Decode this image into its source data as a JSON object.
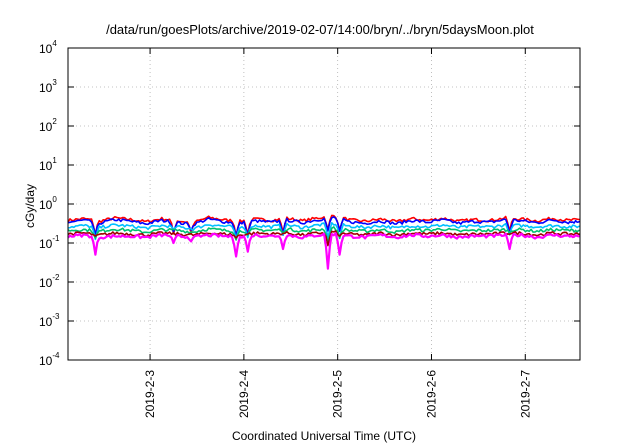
{
  "chart_data": {
    "type": "line",
    "title": "/data/run/goesPlots/archive/2019-02-07/14:00/bryn/../bryn/5daysMoon.plot",
    "xlabel": "Coordinated Universal Time (UTC)",
    "ylabel": "cGy/day",
    "yscale": "log",
    "ylim": [
      0.0001,
      10000
    ],
    "yticks": [
      {
        "base": "10",
        "exp": "-4",
        "value": 0.0001
      },
      {
        "base": "10",
        "exp": "-3",
        "value": 0.001
      },
      {
        "base": "10",
        "exp": "-2",
        "value": 0.01
      },
      {
        "base": "10",
        "exp": "-1",
        "value": 0.1
      },
      {
        "base": "10",
        "exp": "0",
        "value": 1
      },
      {
        "base": "10",
        "exp": "1",
        "value": 10
      },
      {
        "base": "10",
        "exp": "2",
        "value": 100
      },
      {
        "base": "10",
        "exp": "3",
        "value": 1000
      },
      {
        "base": "10",
        "exp": "4",
        "value": 10000
      }
    ],
    "xlim": [
      "2019-02-02T03:00",
      "2019-02-07T14:00"
    ],
    "xticks": [
      {
        "label": "2019-2-3",
        "date": "2019-02-03T00:00"
      },
      {
        "label": "2019-2-4",
        "date": "2019-02-04T00:00"
      },
      {
        "label": "2019-2-5",
        "date": "2019-02-05T00:00"
      },
      {
        "label": "2019-2-6",
        "date": "2019-02-06T00:00"
      },
      {
        "label": "2019-2-7",
        "date": "2019-02-07T00:00"
      }
    ],
    "grid": true,
    "x_dates": [
      "2019-02-02T03:00",
      "2019-02-02T07:00",
      "2019-02-02T11:00",
      "2019-02-02T15:00",
      "2019-02-02T19:00",
      "2019-02-02T23:00",
      "2019-02-03T03:00",
      "2019-02-03T07:00",
      "2019-02-03T11:00",
      "2019-02-03T15:00",
      "2019-02-03T19:00",
      "2019-02-03T23:00",
      "2019-02-04T03:00",
      "2019-02-04T07:00",
      "2019-02-04T11:00",
      "2019-02-04T15:00",
      "2019-02-04T19:00",
      "2019-02-04T23:00",
      "2019-02-05T03:00",
      "2019-02-05T07:00",
      "2019-02-05T11:00",
      "2019-02-05T15:00",
      "2019-02-05T19:00",
      "2019-02-05T23:00",
      "2019-02-06T03:00",
      "2019-02-06T07:00",
      "2019-02-06T11:00",
      "2019-02-06T15:00",
      "2019-02-06T19:00",
      "2019-02-06T23:00",
      "2019-02-07T03:00",
      "2019-02-07T07:00",
      "2019-02-07T11:00",
      "2019-02-07T14:00"
    ],
    "series": [
      {
        "color": "#ff0000",
        "values": [
          0.38,
          0.42,
          0.36,
          0.44,
          0.4,
          0.35,
          0.42,
          0.37,
          0.33,
          0.45,
          0.39,
          0.36,
          0.41,
          0.38,
          0.43,
          0.37,
          0.44,
          0.5,
          0.39,
          0.36,
          0.41,
          0.35,
          0.42,
          0.38,
          0.43,
          0.36,
          0.4,
          0.38,
          0.44,
          0.41,
          0.37,
          0.43,
          0.38,
          0.4
        ]
      },
      {
        "color": "#0000ff",
        "values": [
          0.34,
          0.38,
          0.32,
          0.4,
          0.36,
          0.31,
          0.38,
          0.33,
          0.3,
          0.41,
          0.35,
          0.32,
          0.37,
          0.34,
          0.39,
          0.33,
          0.4,
          0.45,
          0.35,
          0.32,
          0.37,
          0.31,
          0.38,
          0.34,
          0.39,
          0.32,
          0.36,
          0.34,
          0.4,
          0.37,
          0.33,
          0.39,
          0.34,
          0.36
        ]
      },
      {
        "color": "#00c0ff",
        "values": [
          0.26,
          0.28,
          0.25,
          0.29,
          0.27,
          0.24,
          0.28,
          0.26,
          0.23,
          0.3,
          0.27,
          0.25,
          0.28,
          0.26,
          0.29,
          0.25,
          0.29,
          0.31,
          0.27,
          0.25,
          0.28,
          0.24,
          0.28,
          0.26,
          0.29,
          0.25,
          0.27,
          0.26,
          0.29,
          0.28,
          0.26,
          0.28,
          0.26,
          0.27
        ]
      },
      {
        "color": "#00c070",
        "values": [
          0.21,
          0.22,
          0.2,
          0.23,
          0.21,
          0.19,
          0.22,
          0.21,
          0.19,
          0.23,
          0.21,
          0.2,
          0.22,
          0.21,
          0.23,
          0.2,
          0.22,
          0.24,
          0.21,
          0.2,
          0.22,
          0.19,
          0.22,
          0.21,
          0.23,
          0.2,
          0.21,
          0.21,
          0.22,
          0.22,
          0.2,
          0.22,
          0.21,
          0.21
        ]
      },
      {
        "color": "#a00000",
        "values": [
          0.17,
          0.18,
          0.16,
          0.18,
          0.17,
          0.16,
          0.18,
          0.17,
          0.16,
          0.18,
          0.17,
          0.16,
          0.18,
          0.17,
          0.18,
          0.16,
          0.18,
          0.19,
          0.17,
          0.16,
          0.18,
          0.16,
          0.18,
          0.17,
          0.18,
          0.16,
          0.17,
          0.17,
          0.18,
          0.18,
          0.16,
          0.18,
          0.17,
          0.17
        ]
      },
      {
        "color": "#ff00ff",
        "values": [
          0.15,
          0.16,
          0.14,
          0.15,
          0.15,
          0.14,
          0.16,
          0.15,
          0.14,
          0.16,
          0.15,
          0.14,
          0.16,
          0.15,
          0.16,
          0.14,
          0.16,
          0.17,
          0.15,
          0.14,
          0.16,
          0.14,
          0.16,
          0.15,
          0.16,
          0.14,
          0.15,
          0.15,
          0.16,
          0.16,
          0.14,
          0.16,
          0.15,
          0.15
        ]
      }
    ],
    "dips": [
      {
        "date": "2019-02-02T10:00",
        "value": 0.05
      },
      {
        "date": "2019-02-03T06:00",
        "value": 0.1
      },
      {
        "date": "2019-02-03T10:30",
        "value": 0.11
      },
      {
        "date": "2019-02-03T22:00",
        "value": 0.045
      },
      {
        "date": "2019-02-04T01:00",
        "value": 0.06
      },
      {
        "date": "2019-02-04T10:00",
        "value": 0.07
      },
      {
        "date": "2019-02-04T21:30",
        "value": 0.022
      },
      {
        "date": "2019-02-05T00:30",
        "value": 0.05
      },
      {
        "date": "2019-02-06T20:00",
        "value": 0.07
      }
    ]
  }
}
